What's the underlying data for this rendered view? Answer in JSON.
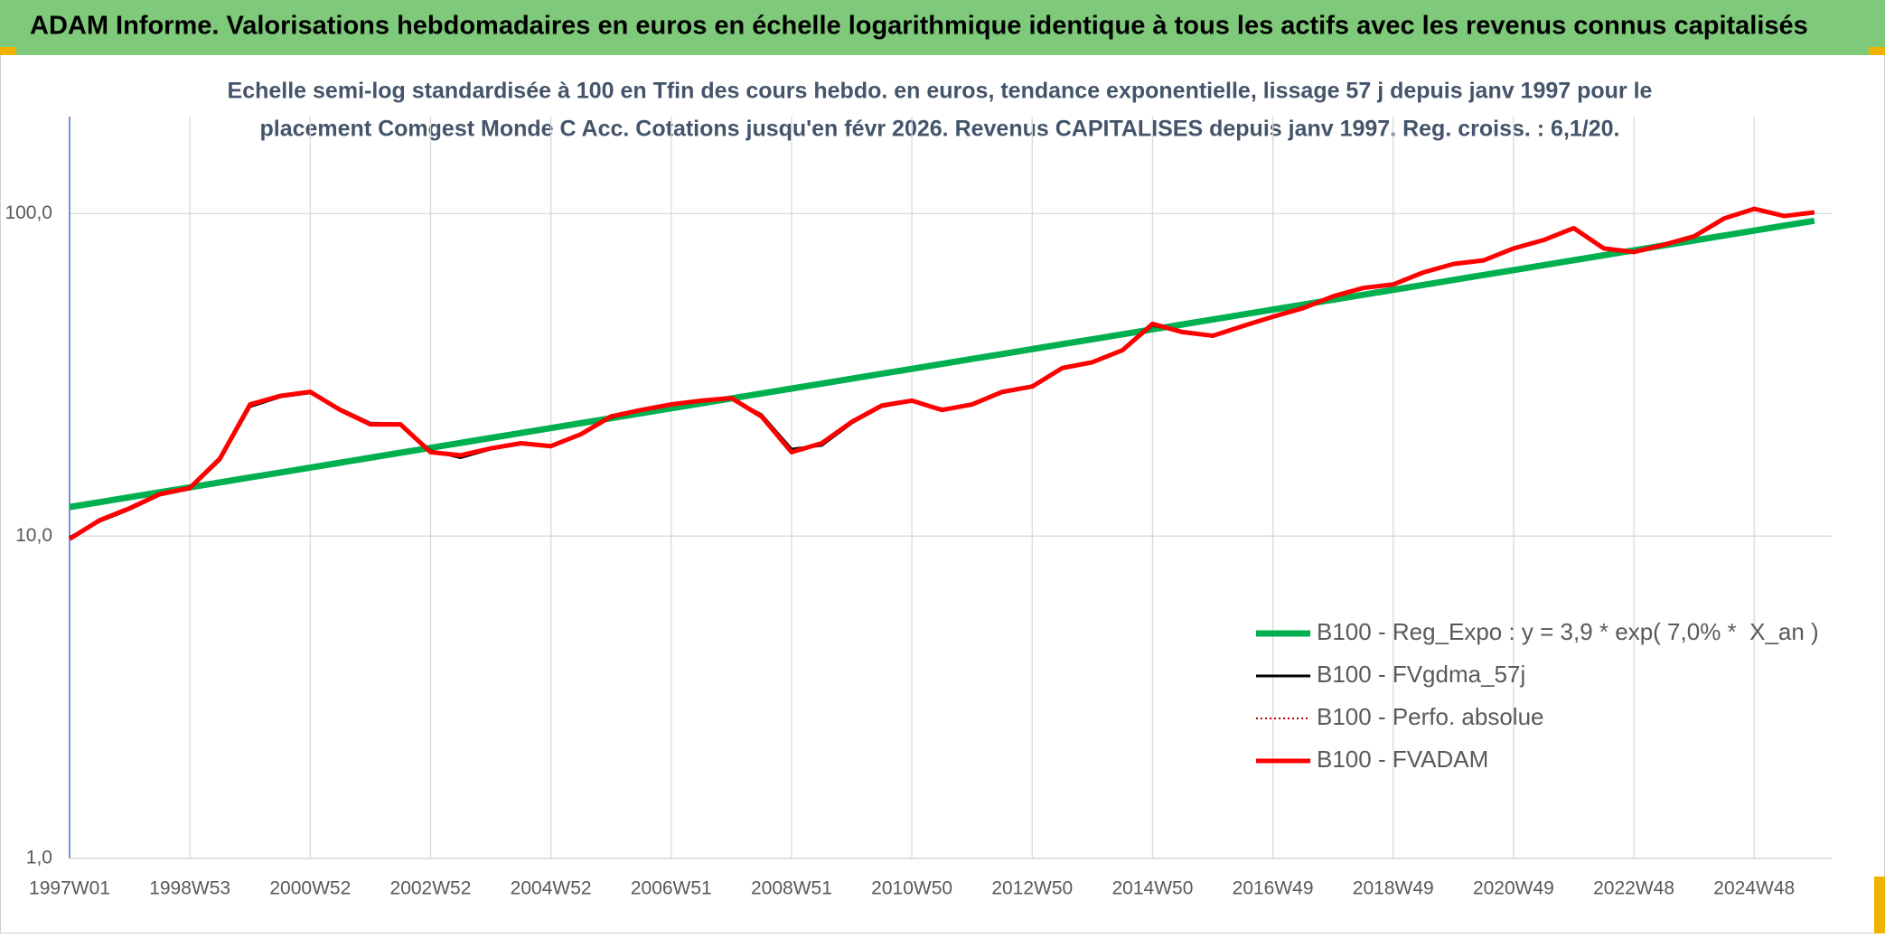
{
  "chart_data": {
    "type": "line",
    "title": "ADAM Informe. Valorisations hebdomadaires en euros en échelle logarithmique identique à tous les actifs avec les revenus connus capitalisés",
    "subtitle": [
      "Echelle semi-log standardisée à 100 en Tfin des cours hebdo. en euros, tendance exponentielle, lissage 57 j depuis janv 1997 pour le",
      "placement Comgest Monde C Acc. Cotations jusqu'en févr 2026. Revenus CAPITALISES depuis janv 1997. Reg. croiss. : 6,1/20."
    ],
    "categories": [
      "1997W01",
      null,
      null,
      null,
      "1998W53",
      null,
      null,
      null,
      "2000W52",
      null,
      null,
      null,
      "2002W52",
      null,
      null,
      null,
      "2004W52",
      null,
      null,
      null,
      "2006W51",
      null,
      null,
      null,
      "2008W51",
      null,
      null,
      null,
      "2010W50",
      null,
      null,
      null,
      "2012W50",
      null,
      null,
      null,
      "2014W50",
      null,
      null,
      null,
      "2016W49",
      null,
      null,
      null,
      "2018W49",
      null,
      null,
      null,
      "2020W49",
      null,
      null,
      null,
      "2022W48",
      null,
      null,
      null,
      "2024W48",
      null,
      null
    ],
    "ylog": true,
    "ylim": [
      1,
      200
    ],
    "yticks": [
      {
        "value": 1,
        "label": "1,0"
      },
      {
        "value": 10,
        "label": "10,0"
      },
      {
        "value": 100,
        "label": "100,0"
      }
    ],
    "grid": true,
    "legend": "lower right",
    "series": [
      {
        "name": "B100 - Reg_Expo : y = 3,9 * exp( 7,0% *  X_an )",
        "color": "#00b050",
        "style": "solid",
        "values": [
          12.3,
          12.74,
          13.2,
          13.67,
          14.16,
          14.67,
          15.2,
          15.74,
          16.31,
          16.89,
          17.5,
          18.13,
          18.78,
          19.45,
          20.15,
          20.87,
          21.62,
          22.4,
          23.2,
          24.03,
          24.9,
          25.79,
          26.72,
          27.68,
          28.67,
          29.7,
          30.76,
          31.87,
          33.01,
          34.19,
          35.42,
          36.69,
          38.01,
          39.37,
          40.78,
          42.25,
          43.76,
          45.33,
          46.96,
          48.65,
          50.39,
          52.2,
          54.07,
          56.01,
          58.02,
          60.11,
          62.26,
          64.5,
          66.81,
          69.21,
          71.69,
          74.27,
          76.93,
          79.69,
          82.55,
          85.51,
          88.58,
          91.76,
          95.05
        ]
      },
      {
        "name": "B100 - FVgdma_57j",
        "color": "#000000",
        "style": "solid",
        "values": [
          9.9,
          11.1,
          12.1,
          13.4,
          14.0,
          17.2,
          25.2,
          27.0,
          27.8,
          24.8,
          22.4,
          22.3,
          18.4,
          17.5,
          18.6,
          19.3,
          19.1,
          20.6,
          23.3,
          24.5,
          25.5,
          26.2,
          26.7,
          23.8,
          18.6,
          19.1,
          22.4,
          25.2,
          26.2,
          24.8,
          25.5,
          27.8,
          29.0,
          33.0,
          34.5,
          37.5,
          45.0,
          43.2,
          42.0,
          44.6,
          47.7,
          50.7,
          55.1,
          58.6,
          60.2,
          65.4,
          69.5,
          71.5,
          77.6,
          82.5,
          89.6,
          78.5,
          76.2,
          80.0,
          84.8,
          96.2,
          103.0,
          98.6,
          100.6
        ]
      },
      {
        "name": "B100 - Perfo. absolue",
        "color": "#c00000",
        "style": "dotted",
        "values": [
          9.8,
          11.2,
          12.2,
          13.5,
          14.1,
          17.4,
          25.6,
          27.2,
          28.0,
          24.6,
          22.2,
          22.2,
          18.2,
          17.8,
          18.7,
          19.4,
          19.0,
          20.7,
          23.5,
          24.6,
          25.6,
          26.3,
          26.8,
          23.5,
          18.2,
          19.4,
          22.6,
          25.4,
          26.3,
          24.6,
          25.6,
          28.0,
          29.1,
          33.2,
          34.6,
          37.7,
          45.5,
          42.9,
          41.8,
          44.8,
          47.9,
          50.9,
          55.4,
          58.8,
          60.3,
          65.7,
          69.8,
          71.6,
          78.0,
          82.8,
          90.2,
          78.0,
          76.0,
          80.1,
          85.0,
          96.6,
          103.5,
          98.3,
          100.9
        ]
      },
      {
        "name": "B100 - FVADAM",
        "color": "#ff0000",
        "style": "solid",
        "values": [
          9.8,
          11.2,
          12.2,
          13.5,
          14.1,
          17.4,
          25.6,
          27.2,
          28.0,
          24.6,
          22.2,
          22.2,
          18.2,
          17.8,
          18.7,
          19.4,
          19.0,
          20.7,
          23.5,
          24.6,
          25.6,
          26.3,
          26.8,
          23.5,
          18.2,
          19.4,
          22.6,
          25.4,
          26.3,
          24.6,
          25.6,
          28.0,
          29.1,
          33.2,
          34.6,
          37.7,
          45.5,
          42.9,
          41.8,
          44.8,
          47.9,
          50.9,
          55.4,
          58.8,
          60.3,
          65.7,
          69.8,
          71.6,
          78.0,
          82.8,
          90.2,
          78.0,
          76.0,
          80.1,
          85.0,
          96.6,
          103.5,
          98.3,
          100.9
        ]
      }
    ]
  }
}
